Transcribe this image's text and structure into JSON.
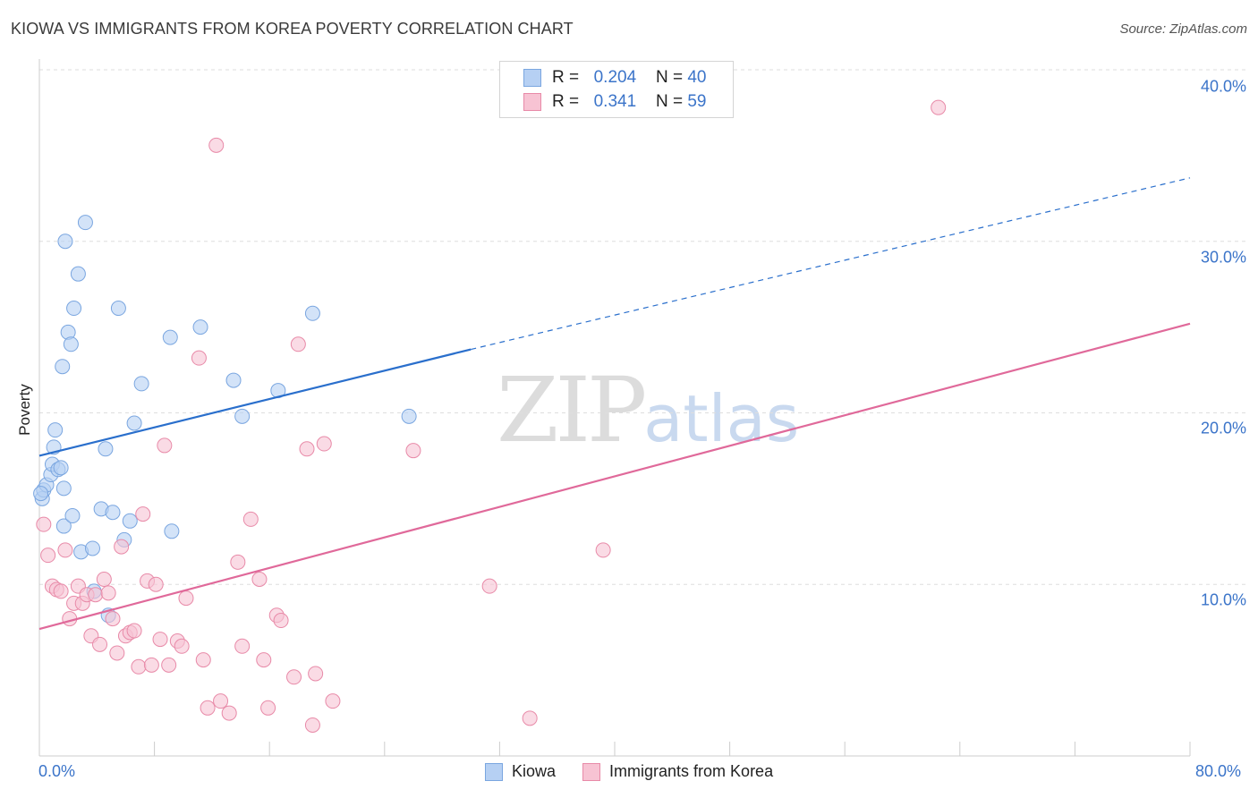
{
  "title": "KIOWA VS IMMIGRANTS FROM KOREA POVERTY CORRELATION CHART",
  "source": "Source: ZipAtlas.com",
  "watermark": {
    "zip": "ZIP",
    "atlas": "atlas"
  },
  "legend": {
    "rows": [
      {
        "r_label": "R =",
        "r_value": "0.204",
        "n_label": "N =",
        "n_value": "40"
      },
      {
        "r_label": "R =",
        "r_value": "0.341",
        "n_label": "N =",
        "n_value": "59"
      }
    ]
  },
  "bottom_legend": [
    "Kiowa",
    "Immigrants from Korea"
  ],
  "colors": {
    "kiowa_fill": "#b6d0f3",
    "kiowa_stroke": "#7aa6e0",
    "kiowa_line": "#2a6fcc",
    "korea_fill": "#f7c3d3",
    "korea_stroke": "#e88aa8",
    "korea_line": "#e0699a",
    "tick_text": "#3b74c9"
  },
  "chart_data": {
    "type": "scatter",
    "title": "KIOWA VS IMMIGRANTS FROM KOREA POVERTY CORRELATION CHART",
    "xlabel": "",
    "ylabel": "Poverty",
    "xlim": [
      0,
      80
    ],
    "ylim": [
      0,
      40
    ],
    "x_tick_labels": [
      "0.0%",
      "80.0%"
    ],
    "y_tick_labels": [
      "10.0%",
      "20.0%",
      "30.0%",
      "40.0%"
    ],
    "y_ticks": [
      10,
      20,
      30,
      40
    ],
    "series": [
      {
        "name": "Kiowa",
        "R": 0.204,
        "N": 40,
        "trend": {
          "x0": 0,
          "y0": 17.5,
          "x1": 30,
          "y1": 23.7,
          "dash_x1": 80,
          "dash_y1": 33.7
        },
        "points": [
          [
            0.2,
            15.0
          ],
          [
            0.3,
            15.5
          ],
          [
            0.5,
            15.8
          ],
          [
            0.8,
            16.4
          ],
          [
            0.9,
            17.0
          ],
          [
            1.0,
            18.0
          ],
          [
            1.1,
            19.0
          ],
          [
            1.3,
            16.7
          ],
          [
            1.5,
            16.8
          ],
          [
            1.6,
            22.7
          ],
          [
            1.7,
            13.4
          ],
          [
            1.7,
            15.6
          ],
          [
            1.8,
            30.0
          ],
          [
            2.0,
            24.7
          ],
          [
            2.2,
            24.0
          ],
          [
            2.3,
            14.0
          ],
          [
            2.4,
            26.1
          ],
          [
            2.7,
            28.1
          ],
          [
            2.9,
            11.9
          ],
          [
            3.2,
            31.1
          ],
          [
            3.7,
            12.1
          ],
          [
            3.8,
            9.6
          ],
          [
            4.3,
            14.4
          ],
          [
            4.6,
            17.9
          ],
          [
            4.8,
            8.2
          ],
          [
            5.1,
            14.2
          ],
          [
            5.5,
            26.1
          ],
          [
            5.9,
            12.6
          ],
          [
            6.3,
            13.7
          ],
          [
            6.6,
            19.4
          ],
          [
            7.1,
            21.7
          ],
          [
            9.1,
            24.4
          ],
          [
            9.2,
            13.1
          ],
          [
            11.2,
            25.0
          ],
          [
            13.5,
            21.9
          ],
          [
            14.1,
            19.8
          ],
          [
            16.6,
            21.3
          ],
          [
            19.0,
            25.8
          ],
          [
            25.7,
            19.8
          ],
          [
            0.1,
            15.3
          ]
        ]
      },
      {
        "name": "Immigrants from Korea",
        "R": 0.341,
        "N": 59,
        "trend": {
          "x0": 0,
          "y0": 7.4,
          "x1": 80,
          "y1": 25.2
        },
        "points": [
          [
            0.3,
            13.5
          ],
          [
            0.6,
            11.7
          ],
          [
            0.9,
            9.9
          ],
          [
            1.2,
            9.7
          ],
          [
            1.5,
            9.6
          ],
          [
            1.8,
            12.0
          ],
          [
            2.1,
            8.0
          ],
          [
            2.4,
            8.9
          ],
          [
            2.7,
            9.9
          ],
          [
            3.0,
            8.9
          ],
          [
            3.3,
            9.4
          ],
          [
            3.6,
            7.0
          ],
          [
            3.9,
            9.4
          ],
          [
            4.2,
            6.5
          ],
          [
            4.5,
            10.3
          ],
          [
            4.8,
            9.5
          ],
          [
            5.1,
            8.0
          ],
          [
            5.4,
            6.0
          ],
          [
            5.7,
            12.2
          ],
          [
            6.0,
            7.0
          ],
          [
            6.3,
            7.2
          ],
          [
            6.6,
            7.3
          ],
          [
            6.9,
            5.2
          ],
          [
            7.2,
            14.1
          ],
          [
            7.5,
            10.2
          ],
          [
            7.8,
            5.3
          ],
          [
            8.1,
            10.0
          ],
          [
            8.4,
            6.8
          ],
          [
            8.7,
            18.1
          ],
          [
            9.0,
            5.3
          ],
          [
            9.6,
            6.7
          ],
          [
            9.9,
            6.4
          ],
          [
            10.2,
            9.2
          ],
          [
            11.1,
            23.2
          ],
          [
            11.4,
            5.6
          ],
          [
            11.7,
            2.8
          ],
          [
            12.3,
            35.6
          ],
          [
            12.6,
            3.2
          ],
          [
            13.2,
            2.5
          ],
          [
            13.8,
            11.3
          ],
          [
            14.1,
            6.4
          ],
          [
            14.7,
            13.8
          ],
          [
            15.3,
            10.3
          ],
          [
            15.6,
            5.6
          ],
          [
            15.9,
            2.8
          ],
          [
            16.5,
            8.2
          ],
          [
            16.8,
            7.9
          ],
          [
            17.7,
            4.6
          ],
          [
            18.0,
            24.0
          ],
          [
            18.6,
            17.9
          ],
          [
            19.2,
            4.8
          ],
          [
            19.8,
            18.2
          ],
          [
            20.4,
            3.2
          ],
          [
            19.0,
            1.8
          ],
          [
            26.0,
            17.8
          ],
          [
            31.3,
            9.9
          ],
          [
            34.1,
            2.2
          ],
          [
            39.2,
            12.0
          ],
          [
            62.5,
            37.8
          ]
        ]
      }
    ]
  }
}
